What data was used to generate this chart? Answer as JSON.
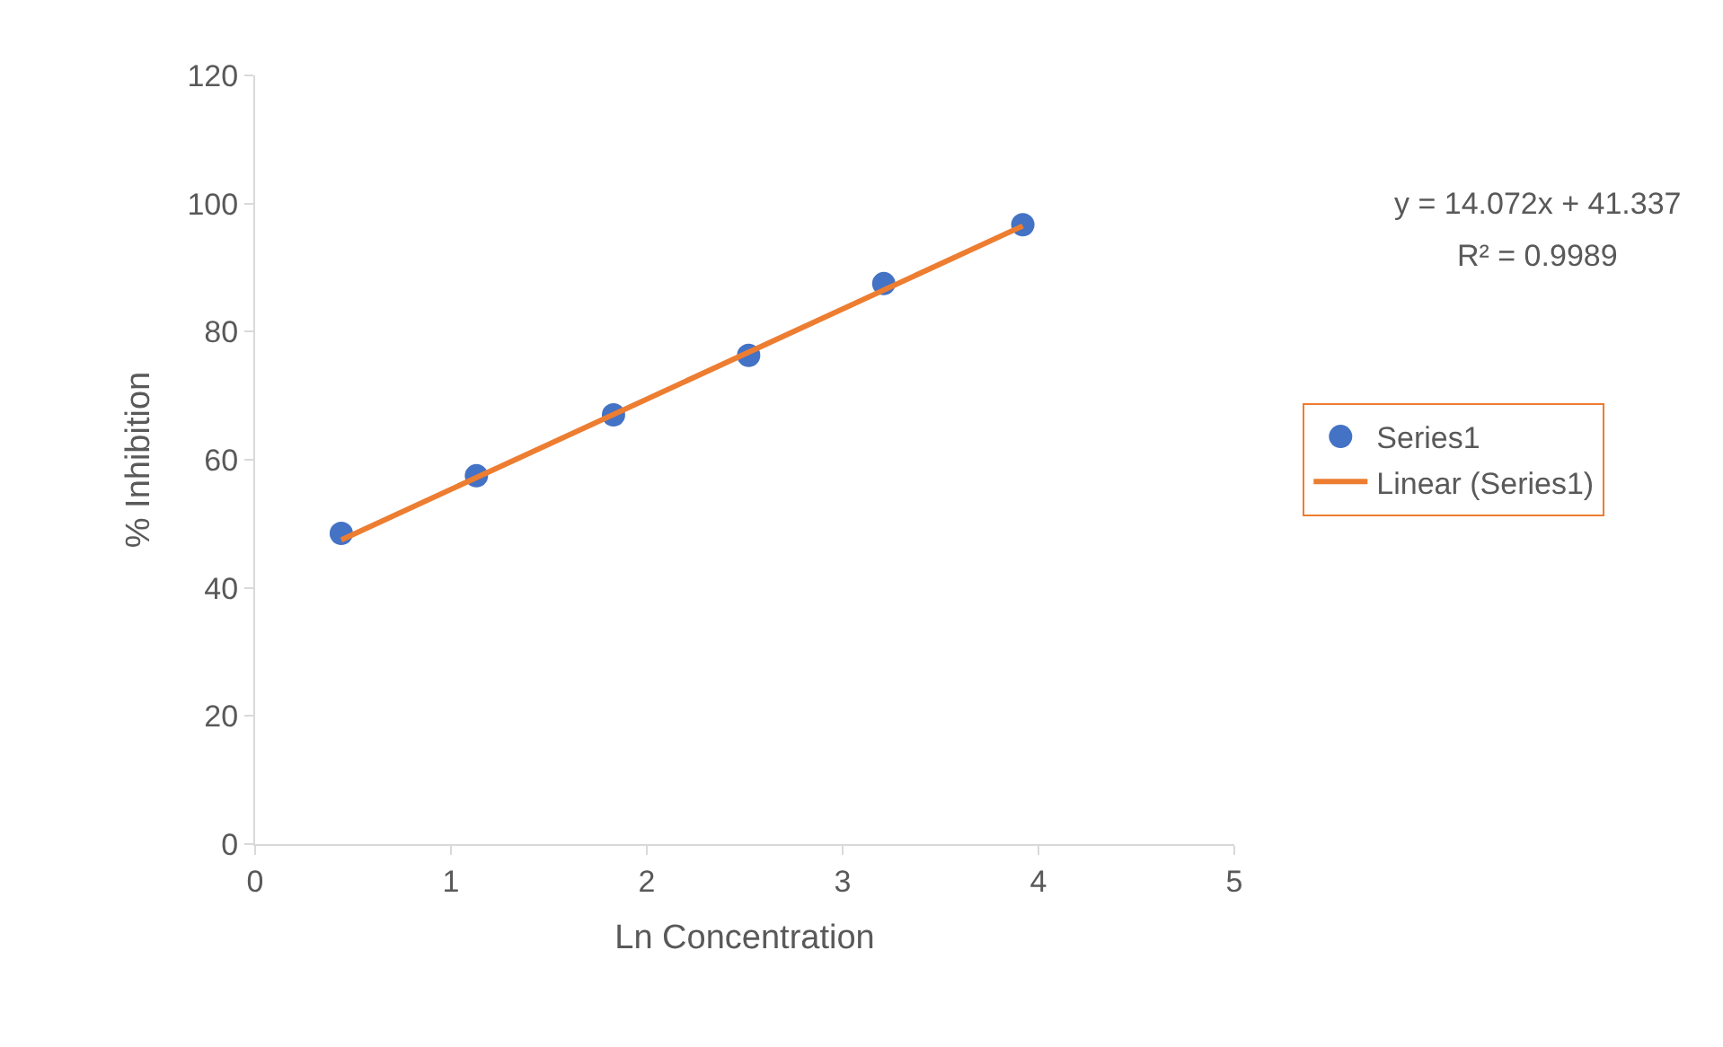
{
  "chart_data": {
    "type": "scatter",
    "xlabel": "Ln Concentration",
    "ylabel": "% Inhibition",
    "annotations": [
      "y = 14.072x + 41.337",
      "R² = 0.9989"
    ],
    "series": [
      {
        "name": "Series1",
        "color": "#4472c4",
        "x": [
          0.44,
          1.13,
          1.83,
          2.52,
          3.21,
          3.92
        ],
        "values": [
          48.5,
          57.5,
          67.0,
          76.3,
          87.5,
          96.7
        ],
        "marker": "circle"
      },
      {
        "name": "Linear (Series1)",
        "type": "line",
        "color": "#ed7d31",
        "x": [
          0.44,
          3.92
        ],
        "values": [
          47.5,
          96.5
        ],
        "marker": "none",
        "line_style": "solid"
      }
    ],
    "xlim": [
      0,
      5
    ],
    "xticks": [
      0,
      1,
      2,
      3,
      4,
      5
    ],
    "ylim": [
      0,
      120
    ],
    "yticks": [
      0,
      20,
      40,
      60,
      80,
      100,
      120
    ],
    "legend": "right"
  }
}
